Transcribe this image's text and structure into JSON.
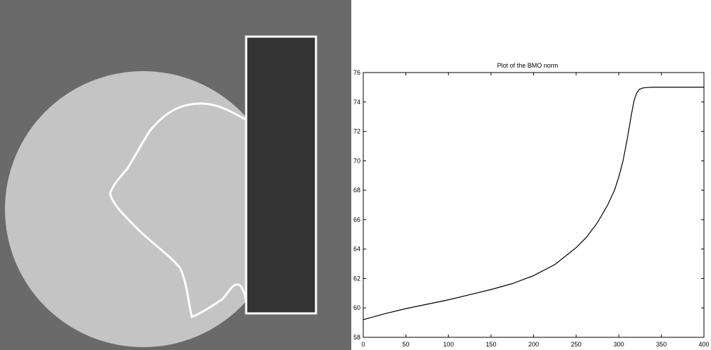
{
  "colors": {
    "background_gray": "#6a6a6a",
    "disk_gray": "#c4c4c4",
    "rectangle_dark": "#333333",
    "contour_white": "#ffffff",
    "chart_line": "#000000"
  },
  "segmentation_panel": {
    "description_icon": "segmentation-image"
  },
  "chart_data": {
    "type": "line",
    "title": "Plot of the BMO norm",
    "xlabel": "",
    "ylabel": "",
    "xlim": [
      0,
      400
    ],
    "ylim": [
      58,
      76
    ],
    "grid": false,
    "x_ticks": [
      "0",
      "50",
      "100",
      "150",
      "200",
      "250",
      "300",
      "350",
      "400"
    ],
    "y_ticks": [
      "58",
      "60",
      "62",
      "64",
      "66",
      "68",
      "70",
      "72",
      "74",
      "76"
    ],
    "series": [
      {
        "x": [
          0,
          25,
          50,
          75,
          100,
          125,
          150,
          175,
          200,
          225,
          250,
          262,
          275,
          287,
          295,
          300,
          305,
          310,
          315,
          318,
          321,
          324,
          328,
          333,
          340,
          350,
          375,
          400
        ],
        "y": [
          59.2,
          59.6,
          59.95,
          60.25,
          60.55,
          60.9,
          61.25,
          61.65,
          62.2,
          62.95,
          64.1,
          64.8,
          65.8,
          67.0,
          68.0,
          68.9,
          70.0,
          71.5,
          73.2,
          74.1,
          74.6,
          74.85,
          74.95,
          74.98,
          75.0,
          75.0,
          75.0,
          75.0
        ]
      }
    ]
  }
}
